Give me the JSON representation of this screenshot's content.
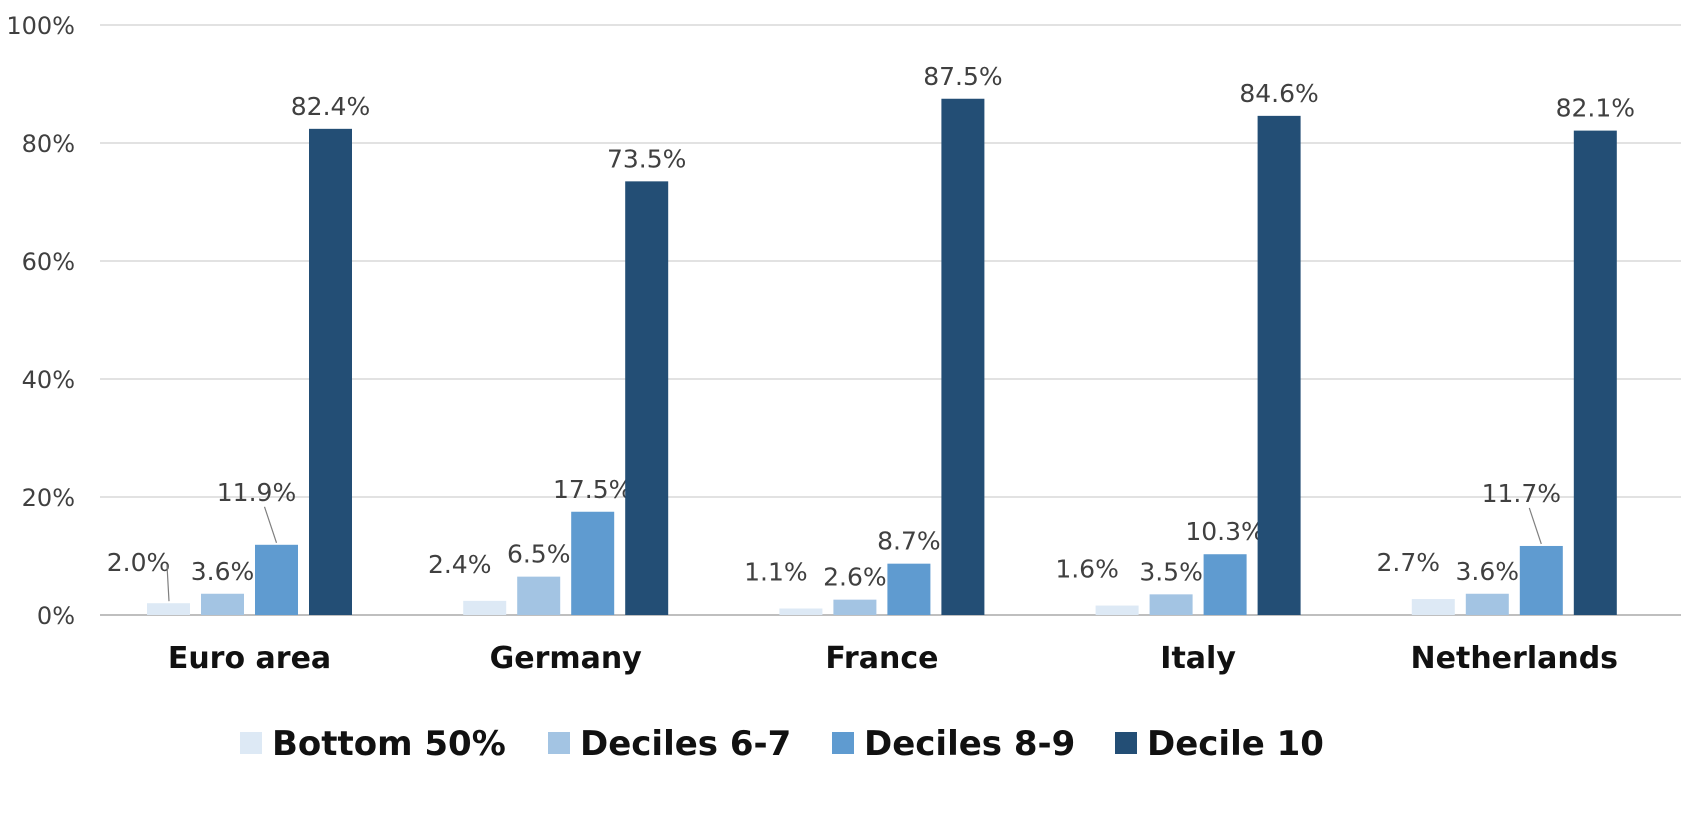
{
  "chart_data": {
    "type": "bar",
    "categories": [
      "Euro area",
      "Germany",
      "France",
      "Italy",
      "Netherlands"
    ],
    "series": [
      {
        "name": "Bottom 50%",
        "color": "#dde9f5",
        "values": [
          2.0,
          2.4,
          1.1,
          1.6,
          2.7
        ],
        "labels": [
          "2.0%",
          "2.4%",
          "1.1%",
          "1.6%",
          "2.7%"
        ]
      },
      {
        "name": "Deciles 6-7",
        "color": "#a3c4e3",
        "values": [
          3.6,
          6.5,
          2.6,
          3.5,
          3.6
        ],
        "labels": [
          "3.6%",
          "6.5%",
          "2.6%",
          "3.5%",
          "3.6%"
        ]
      },
      {
        "name": "Deciles 8-9",
        "color": "#5f9bd0",
        "values": [
          11.9,
          17.5,
          8.7,
          10.3,
          11.7
        ],
        "labels": [
          "11.9%",
          "17.5%",
          "8.7%",
          "10.3%",
          "11.7%"
        ]
      },
      {
        "name": "Decile 10",
        "color": "#234e75",
        "values": [
          82.4,
          73.5,
          87.5,
          84.6,
          82.1
        ],
        "labels": [
          "82.4%",
          "73.5%",
          "87.5%",
          "84.6%",
          "82.1%"
        ]
      }
    ],
    "yticks": [
      "0%",
      "20%",
      "40%",
      "60%",
      "80%",
      "100%"
    ],
    "ylim": [
      0,
      100
    ],
    "grid": true,
    "legend_position": "bottom"
  }
}
